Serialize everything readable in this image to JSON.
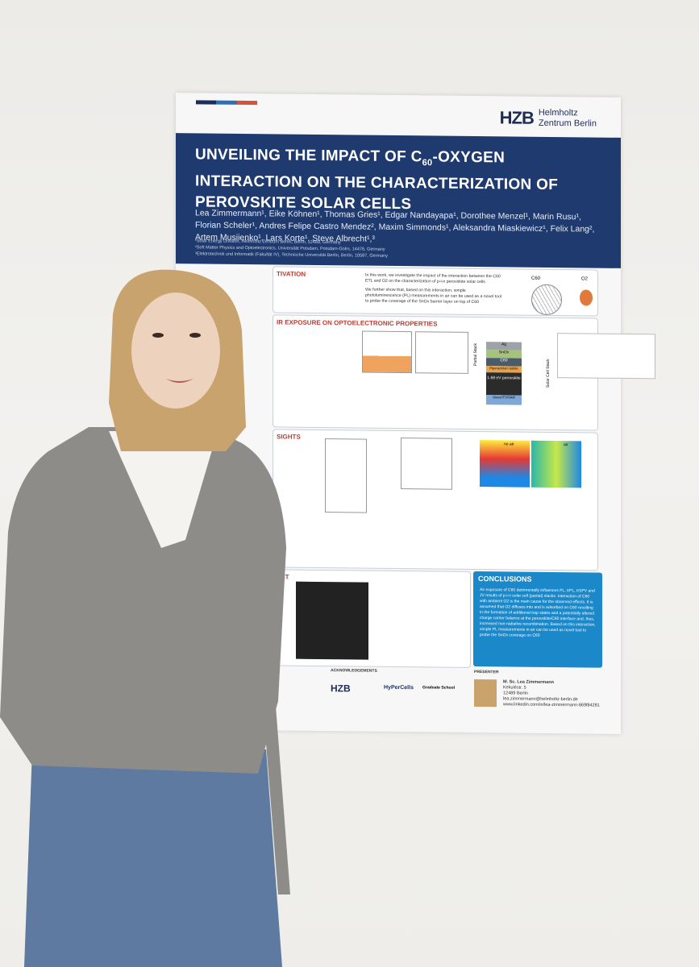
{
  "poster": {
    "hzb_logo": "HZB",
    "hzb_name_line1": "Helmholtz",
    "hzb_name_line2": "Zentrum Berlin",
    "title_line1": "UNVEILING THE IMPACT OF C",
    "title_sub": "60",
    "title_line1_end": "-OXYGEN",
    "title_line2": "INTERACTION ON THE CHARACTERIZATION OF",
    "title_line3": "PEROVSKITE SOLAR CELLS",
    "authors_line1": "Lea Zimmermann¹, Eike Köhnen¹, Thomas Gries¹, Edgar Nandayapa¹, Dorothee Menzel¹, Marin Rusu¹,",
    "authors_line2": "Florian Scheler¹, Andres Felipe Castro Mendez², Maxim Simmonds¹, Aleksandra Miaskiewicz¹, Felix Lang²,",
    "authors_line3": "Artem Musiienko¹, Lars Korte¹, Steve Albrecht¹,³",
    "affil_1": "¹Solar Energy Division, Helmholtz Zentrum Berlin, Berlin, 12489, Germany",
    "affil_2": "²Soft Matter Physics and Optoelectronics, Universität Potsdam, Potsdam-Golm, 14476, Germany",
    "affil_3": "³Elektrotechnik und Informatik (Fakultät IV), Technische Universität Berlin, Berlin, 10587, Germany",
    "sections": {
      "motivation": "TIVATION",
      "air_exposure": "IR EXPOSURE ON OPTOELECTRONIC PROPERTIES",
      "insights": "SIGHTS",
      "test": "EST",
      "conclusions": "CONCLUSIONS",
      "acknowledgements": "ACKNOWLEDGEMENTS",
      "presenter": "PRESENTER"
    },
    "motivation_text": "In this work, we investigate the impact of the interaction between the C60 ETL and O2 on the characterization of p-i-n perovskite solar cells",
    "motivation_text2": "We further show that, based on this interaction, simple photoluminescence (PL) measurements in air can be used as a novel tool to probe the coverage of the SnOx barrier layer on top of C60",
    "c60_label": "C60",
    "o2_label": "O2",
    "stack_layers": [
      "Ag",
      "SnOx",
      "C60",
      "Piperazinium Iodide",
      "1.68 eV perovskite",
      "Glass/ITO/SAM"
    ],
    "partial_stack": "Partial Stack",
    "solar_cell_stack": "Solar Cell Stack",
    "conclusions_text": "Air exposure of C60 detrimentally influences PL, trPL, trSPV and JV results of p-i-n solar cell (partial) stacks. Interaction of C60 with ambient O2 is the main cause for the observed effects. It is assumed that O2 diffuses into and is adsorbed on C60 resulting in the formation of additional trap states and a potentially altered charge carrier balance at the perovskite/C60 interface and, thus, increased non-radiative recombination. Based on this interaction, simple PL measurements in air can be used as novel tool to probe the SnOx coverage on C60",
    "presenter_name": "M. Sc. Lea Zimmermann",
    "presenter_addr1": "Kekuléstr. 5",
    "presenter_addr2": "12489 Berlin",
    "presenter_email": "lea.zimmermann@helmholtz-berlin.de",
    "presenter_link": "www.linkedin.com/in/lea-zimmermann-869f84281",
    "hyper_label": "HyPerCells",
    "graduate_school": "Graduate School",
    "hzb_foot": "HZB",
    "no_air": "no air",
    "air": "air"
  },
  "colors": {
    "title_band": "#1e3a6e",
    "accent_red": "#c0392b",
    "conclusion_blue": "#1a88c9",
    "sweater": "#8e8c88",
    "jeans": "#5f7aa0"
  }
}
